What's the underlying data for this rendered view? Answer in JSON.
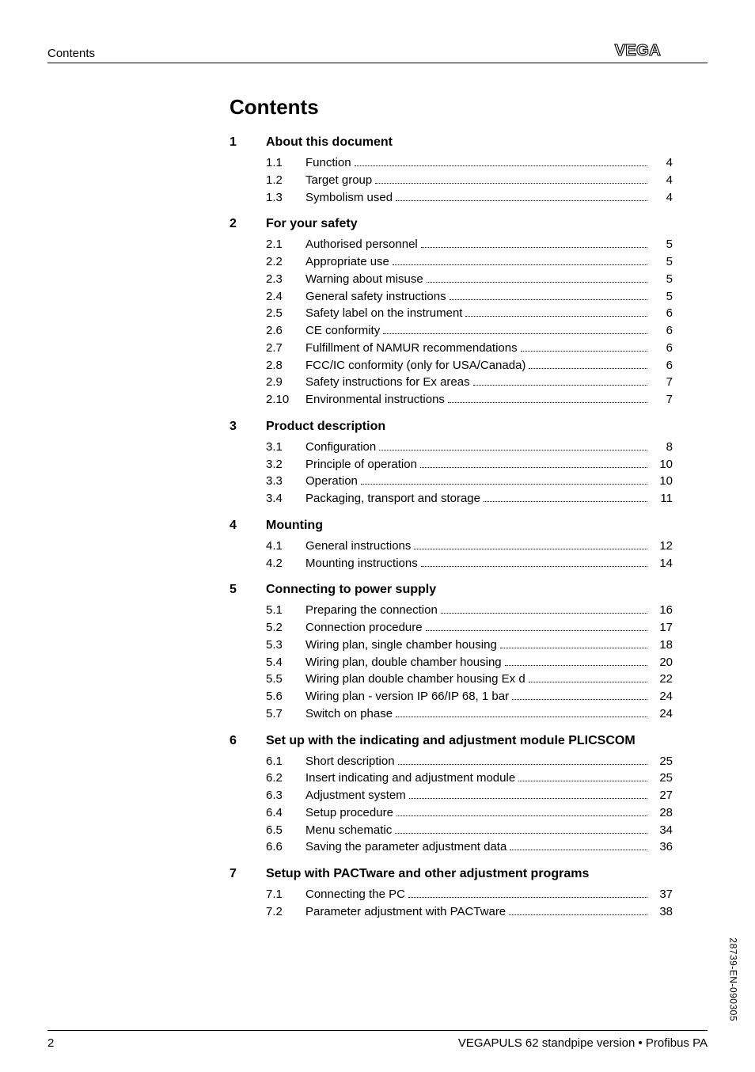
{
  "running_head": "Contents",
  "logo_text": "VEGA",
  "title": "Contents",
  "footer_page": "2",
  "footer_text": "VEGAPULS 62 standpipe version • Profibus PA",
  "side_code": "28739-EN-090305",
  "sections": [
    {
      "num": "1",
      "title": "About this document",
      "entries": [
        {
          "num": "1.1",
          "title": "Function",
          "page": "4"
        },
        {
          "num": "1.2",
          "title": "Target group",
          "page": "4"
        },
        {
          "num": "1.3",
          "title": "Symbolism used",
          "page": "4"
        }
      ]
    },
    {
      "num": "2",
      "title": "For your safety",
      "entries": [
        {
          "num": "2.1",
          "title": "Authorised personnel",
          "page": "5"
        },
        {
          "num": "2.2",
          "title": "Appropriate use",
          "page": "5"
        },
        {
          "num": "2.3",
          "title": "Warning about misuse",
          "page": "5"
        },
        {
          "num": "2.4",
          "title": "General safety instructions",
          "page": "5"
        },
        {
          "num": "2.5",
          "title": "Safety label on the instrument",
          "page": "6"
        },
        {
          "num": "2.6",
          "title": "CE conformity",
          "page": "6"
        },
        {
          "num": "2.7",
          "title": "Fulfillment of NAMUR recommendations",
          "page": "6"
        },
        {
          "num": "2.8",
          "title": "FCC/IC conformity (only for USA/Canada)",
          "page": "6"
        },
        {
          "num": "2.9",
          "title": "Safety instructions for Ex areas",
          "page": "7"
        },
        {
          "num": "2.10",
          "title": "Environmental instructions",
          "page": "7"
        }
      ]
    },
    {
      "num": "3",
      "title": "Product description",
      "entries": [
        {
          "num": "3.1",
          "title": "Configuration",
          "page": "8"
        },
        {
          "num": "3.2",
          "title": "Principle of operation",
          "page": "10"
        },
        {
          "num": "3.3",
          "title": "Operation",
          "page": "10"
        },
        {
          "num": "3.4",
          "title": "Packaging, transport and storage",
          "page": "11"
        }
      ]
    },
    {
      "num": "4",
      "title": "Mounting",
      "entries": [
        {
          "num": "4.1",
          "title": "General instructions",
          "page": "12"
        },
        {
          "num": "4.2",
          "title": "Mounting instructions",
          "page": "14"
        }
      ]
    },
    {
      "num": "5",
      "title": "Connecting to power supply",
      "entries": [
        {
          "num": "5.1",
          "title": "Preparing the connection",
          "page": "16"
        },
        {
          "num": "5.2",
          "title": "Connection procedure",
          "page": "17"
        },
        {
          "num": "5.3",
          "title": "Wiring plan, single chamber housing",
          "page": "18"
        },
        {
          "num": "5.4",
          "title": "Wiring plan, double chamber housing",
          "page": "20"
        },
        {
          "num": "5.5",
          "title": "Wiring plan double chamber housing Ex d",
          "page": "22"
        },
        {
          "num": "5.6",
          "title": "Wiring plan - version IP 66/IP 68, 1 bar",
          "page": "24"
        },
        {
          "num": "5.7",
          "title": "Switch on phase",
          "page": "24"
        }
      ]
    },
    {
      "num": "6",
      "title": "Set up with the indicating and adjustment module PLICSCOM",
      "entries": [
        {
          "num": "6.1",
          "title": "Short description",
          "page": "25"
        },
        {
          "num": "6.2",
          "title": "Insert indicating and adjustment module",
          "page": "25"
        },
        {
          "num": "6.3",
          "title": "Adjustment system",
          "page": "27"
        },
        {
          "num": "6.4",
          "title": "Setup procedure",
          "page": "28"
        },
        {
          "num": "6.5",
          "title": "Menu schematic",
          "page": "34"
        },
        {
          "num": "6.6",
          "title": "Saving the parameter adjustment data",
          "page": "36"
        }
      ]
    },
    {
      "num": "7",
      "title": "Setup with PACTware and other adjustment programs",
      "entries": [
        {
          "num": "7.1",
          "title": "Connecting the PC",
          "page": "37"
        },
        {
          "num": "7.2",
          "title": "Parameter adjustment with PACTware",
          "page": "38"
        }
      ]
    }
  ]
}
